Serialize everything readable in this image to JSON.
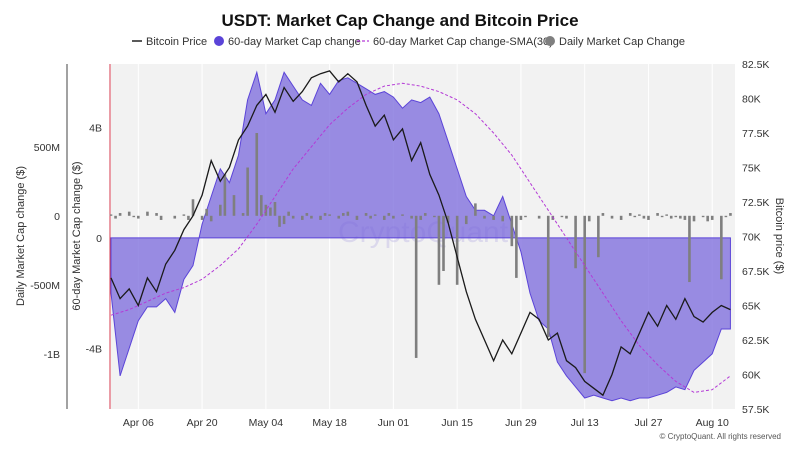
{
  "chart_data": {
    "type": "line",
    "title": "USDT: Market Cap Change and Bitcoin Price",
    "watermark": "CryptoQuant",
    "copyright": "© CryptoQuant. All rights reserved",
    "legend": [
      {
        "name": "Bitcoin Price",
        "style": "line",
        "color": "#222222"
      },
      {
        "name": "60-day Market Cap change",
        "style": "dot",
        "color": "#5b44d8"
      },
      {
        "name": "60-day Market Cap change-SMA(30)",
        "style": "dashed",
        "color": "#b43ad6"
      },
      {
        "name": "Daily Market Cap Change",
        "style": "dot",
        "color": "#7f7f7f"
      }
    ],
    "x_ticks": [
      "Apr 06",
      "Apr 20",
      "May 04",
      "May 18",
      "Jun 01",
      "Jun 15",
      "Jun 29",
      "Jul 13",
      "Jul 27",
      "Aug 10"
    ],
    "axes": {
      "left_outer": {
        "label": "Daily Market Cap change ($)",
        "ticks": [
          "500M",
          "0",
          "-500M",
          "-1B"
        ],
        "range": [
          -1400000000,
          1100000000
        ]
      },
      "left_inner": {
        "label": "60-day Market Cap change ($)",
        "ticks": [
          "4B",
          "0",
          "-4B"
        ],
        "range": [
          -6200000000,
          6300000000
        ]
      },
      "right": {
        "label": "Bitcoin price ($)",
        "ticks": [
          "82.5K",
          "80K",
          "77.5K",
          "75K",
          "72.5K",
          "70K",
          "67.5K",
          "65K",
          "62.5K",
          "60K",
          "57.5K"
        ],
        "range": [
          57500,
          82500
        ]
      }
    },
    "x_range": [
      0,
      137
    ],
    "series": [
      {
        "name": "Bitcoin Price",
        "axis": "right",
        "points": [
          [
            0,
            67000
          ],
          [
            2,
            65500
          ],
          [
            4,
            66200
          ],
          [
            6,
            65000
          ],
          [
            8,
            67000
          ],
          [
            10,
            66000
          ],
          [
            12,
            68000
          ],
          [
            14,
            69000
          ],
          [
            16,
            70500
          ],
          [
            18,
            71500
          ],
          [
            20,
            73000
          ],
          [
            22,
            75500
          ],
          [
            24,
            74000
          ],
          [
            26,
            75000
          ],
          [
            28,
            77000
          ],
          [
            30,
            78000
          ],
          [
            32,
            79500
          ],
          [
            34,
            80300
          ],
          [
            36,
            79000
          ],
          [
            38,
            80800
          ],
          [
            40,
            79800
          ],
          [
            42,
            80500
          ],
          [
            44,
            81500
          ],
          [
            46,
            81800
          ],
          [
            48,
            82000
          ],
          [
            50,
            81200
          ],
          [
            52,
            81800
          ],
          [
            54,
            81200
          ],
          [
            56,
            79500
          ],
          [
            58,
            78000
          ],
          [
            60,
            78800
          ],
          [
            62,
            77000
          ],
          [
            64,
            77800
          ],
          [
            66,
            75500
          ],
          [
            68,
            76800
          ],
          [
            70,
            74500
          ],
          [
            72,
            73000
          ],
          [
            74,
            71000
          ],
          [
            76,
            68500
          ],
          [
            78,
            66000
          ],
          [
            80,
            64000
          ],
          [
            82,
            62500
          ],
          [
            84,
            61000
          ],
          [
            86,
            62500
          ],
          [
            88,
            61500
          ],
          [
            90,
            63000
          ],
          [
            92,
            64500
          ],
          [
            94,
            64000
          ],
          [
            96,
            62500
          ],
          [
            98,
            63000
          ],
          [
            100,
            61000
          ],
          [
            102,
            60500
          ],
          [
            104,
            59500
          ],
          [
            106,
            59000
          ],
          [
            108,
            58500
          ],
          [
            110,
            60000
          ],
          [
            112,
            62000
          ],
          [
            114,
            61500
          ],
          [
            116,
            63000
          ],
          [
            118,
            64500
          ],
          [
            120,
            63500
          ],
          [
            122,
            65000
          ],
          [
            124,
            64000
          ],
          [
            126,
            65500
          ],
          [
            128,
            64200
          ],
          [
            130,
            63800
          ],
          [
            132,
            64500
          ],
          [
            134,
            65000
          ],
          [
            136,
            64700
          ]
        ]
      },
      {
        "name": "60-day Market Cap change",
        "axis": "left_inner",
        "points": [
          [
            0,
            -2000000000
          ],
          [
            2,
            -5000000000
          ],
          [
            4,
            -4000000000
          ],
          [
            6,
            -3000000000
          ],
          [
            8,
            -2500000000
          ],
          [
            10,
            -2500000000
          ],
          [
            12,
            -2200000000
          ],
          [
            14,
            -2700000000
          ],
          [
            16,
            -1500000000
          ],
          [
            18,
            -1000000000
          ],
          [
            20,
            500000000
          ],
          [
            22,
            1500000000
          ],
          [
            24,
            2500000000
          ],
          [
            26,
            2000000000
          ],
          [
            28,
            3000000000
          ],
          [
            30,
            5000000000
          ],
          [
            32,
            6000000000
          ],
          [
            34,
            4500000000
          ],
          [
            36,
            5000000000
          ],
          [
            38,
            6000000000
          ],
          [
            40,
            5500000000
          ],
          [
            42,
            5000000000
          ],
          [
            44,
            4800000000
          ],
          [
            46,
            5600000000
          ],
          [
            48,
            5200000000
          ],
          [
            50,
            5700000000
          ],
          [
            52,
            5800000000
          ],
          [
            54,
            5600000000
          ],
          [
            56,
            5400000000
          ],
          [
            58,
            5200000000
          ],
          [
            60,
            5300000000
          ],
          [
            62,
            5100000000
          ],
          [
            64,
            4700000000
          ],
          [
            66,
            5000000000
          ],
          [
            68,
            4900000000
          ],
          [
            70,
            5100000000
          ],
          [
            72,
            4500000000
          ],
          [
            74,
            3500000000
          ],
          [
            76,
            2500000000
          ],
          [
            78,
            1500000000
          ],
          [
            80,
            1000000000
          ],
          [
            82,
            1000000000
          ],
          [
            84,
            800000000
          ],
          [
            86,
            1500000000
          ],
          [
            88,
            500000000
          ],
          [
            90,
            -500000000
          ],
          [
            92,
            -2000000000
          ],
          [
            94,
            -3000000000
          ],
          [
            96,
            -3300000000
          ],
          [
            98,
            -4500000000
          ],
          [
            100,
            -5000000000
          ],
          [
            102,
            -5400000000
          ],
          [
            104,
            -5800000000
          ],
          [
            106,
            -5700000000
          ],
          [
            108,
            -5800000000
          ],
          [
            110,
            -5900000000
          ],
          [
            112,
            -5800000000
          ],
          [
            114,
            -5900000000
          ],
          [
            116,
            -5800000000
          ],
          [
            118,
            -5800000000
          ],
          [
            120,
            -5700000000
          ],
          [
            122,
            -5600000000
          ],
          [
            124,
            -5400000000
          ],
          [
            126,
            -5500000000
          ],
          [
            128,
            -4800000000
          ],
          [
            130,
            -4500000000
          ],
          [
            132,
            -4200000000
          ],
          [
            134,
            -3300000000
          ],
          [
            136,
            -3300000000
          ]
        ]
      },
      {
        "name": "60-day Market Cap change-SMA(30)",
        "axis": "left_inner",
        "points": [
          [
            0,
            -2800000000
          ],
          [
            4,
            -2600000000
          ],
          [
            8,
            -2300000000
          ],
          [
            12,
            -2000000000
          ],
          [
            16,
            -1800000000
          ],
          [
            20,
            -1500000000
          ],
          [
            24,
            -1000000000
          ],
          [
            28,
            -400000000
          ],
          [
            32,
            500000000
          ],
          [
            36,
            1500000000
          ],
          [
            40,
            2500000000
          ],
          [
            44,
            3300000000
          ],
          [
            48,
            4100000000
          ],
          [
            52,
            4700000000
          ],
          [
            56,
            5200000000
          ],
          [
            60,
            5500000000
          ],
          [
            64,
            5600000000
          ],
          [
            68,
            5500000000
          ],
          [
            72,
            5300000000
          ],
          [
            76,
            5000000000
          ],
          [
            80,
            4500000000
          ],
          [
            84,
            3800000000
          ],
          [
            88,
            3000000000
          ],
          [
            92,
            2000000000
          ],
          [
            96,
            1000000000
          ],
          [
            100,
            0
          ],
          [
            104,
            -1000000000
          ],
          [
            108,
            -2000000000
          ],
          [
            112,
            -3000000000
          ],
          [
            116,
            -3900000000
          ],
          [
            120,
            -4600000000
          ],
          [
            124,
            -5200000000
          ],
          [
            128,
            -5600000000
          ],
          [
            132,
            -5500000000
          ],
          [
            136,
            -5000000000
          ]
        ]
      },
      {
        "name": "Daily Market Cap Change",
        "axis": "left_outer",
        "type": "bar",
        "points": [
          [
            0,
            10000000
          ],
          [
            1,
            -20000000
          ],
          [
            2,
            20000000
          ],
          [
            4,
            30000000
          ],
          [
            5,
            -10000000
          ],
          [
            6,
            -20000000
          ],
          [
            8,
            30000000
          ],
          [
            10,
            20000000
          ],
          [
            11,
            -30000000
          ],
          [
            14,
            -20000000
          ],
          [
            16,
            10000000
          ],
          [
            17,
            -30000000
          ],
          [
            18,
            120000000
          ],
          [
            20,
            -30000000
          ],
          [
            21,
            50000000
          ],
          [
            22,
            -40000000
          ],
          [
            24,
            80000000
          ],
          [
            25,
            300000000
          ],
          [
            27,
            150000000
          ],
          [
            29,
            20000000
          ],
          [
            30,
            350000000
          ],
          [
            32,
            600000000
          ],
          [
            33,
            150000000
          ],
          [
            34,
            80000000
          ],
          [
            35,
            60000000
          ],
          [
            36,
            100000000
          ],
          [
            37,
            -80000000
          ],
          [
            38,
            -60000000
          ],
          [
            39,
            30000000
          ],
          [
            40,
            -20000000
          ],
          [
            42,
            -30000000
          ],
          [
            43,
            20000000
          ],
          [
            44,
            -20000000
          ],
          [
            46,
            -30000000
          ],
          [
            47,
            20000000
          ],
          [
            48,
            10000000
          ],
          [
            50,
            -20000000
          ],
          [
            51,
            20000000
          ],
          [
            52,
            30000000
          ],
          [
            54,
            -30000000
          ],
          [
            56,
            20000000
          ],
          [
            57,
            -20000000
          ],
          [
            58,
            10000000
          ],
          [
            60,
            -30000000
          ],
          [
            61,
            20000000
          ],
          [
            62,
            -20000000
          ],
          [
            64,
            10000000
          ],
          [
            66,
            -20000000
          ],
          [
            67,
            -1030000000
          ],
          [
            68,
            -30000000
          ],
          [
            69,
            20000000
          ],
          [
            71,
            -10000000
          ],
          [
            72,
            -500000000
          ],
          [
            73,
            -400000000
          ],
          [
            74,
            -50000000
          ],
          [
            76,
            -500000000
          ],
          [
            78,
            -60000000
          ],
          [
            80,
            90000000
          ],
          [
            82,
            -20000000
          ],
          [
            84,
            -30000000
          ],
          [
            86,
            -40000000
          ],
          [
            88,
            -220000000
          ],
          [
            89,
            -450000000
          ],
          [
            90,
            -30000000
          ],
          [
            91,
            -10000000
          ],
          [
            94,
            -20000000
          ],
          [
            96,
            -880000000
          ],
          [
            97,
            -30000000
          ],
          [
            99,
            -10000000
          ],
          [
            100,
            -20000000
          ],
          [
            102,
            -380000000
          ],
          [
            104,
            -1140000000
          ],
          [
            105,
            -40000000
          ],
          [
            107,
            -300000000
          ],
          [
            108,
            20000000
          ],
          [
            110,
            -20000000
          ],
          [
            112,
            -30000000
          ],
          [
            114,
            20000000
          ],
          [
            115,
            -10000000
          ],
          [
            116,
            10000000
          ],
          [
            117,
            -20000000
          ],
          [
            118,
            -30000000
          ],
          [
            120,
            20000000
          ],
          [
            121,
            -10000000
          ],
          [
            122,
            10000000
          ],
          [
            123,
            -20000000
          ],
          [
            124,
            -10000000
          ],
          [
            125,
            -20000000
          ],
          [
            126,
            -30000000
          ],
          [
            127,
            -480000000
          ],
          [
            128,
            -40000000
          ],
          [
            130,
            -10000000
          ],
          [
            131,
            -40000000
          ],
          [
            132,
            -30000000
          ],
          [
            134,
            -460000000
          ],
          [
            135,
            -10000000
          ],
          [
            136,
            20000000
          ]
        ]
      }
    ]
  }
}
